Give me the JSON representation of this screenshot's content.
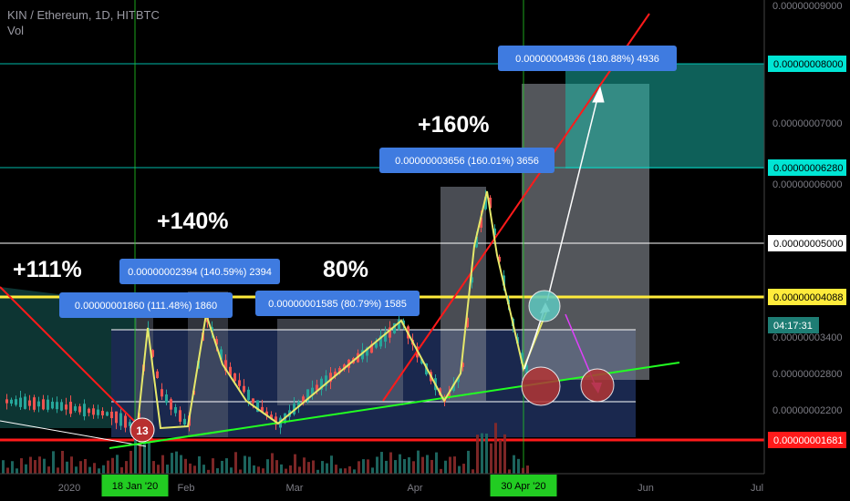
{
  "header": {
    "symbol_line": "KIN / Ethereum, 1D, HITBTC",
    "volume_label": "Vol"
  },
  "chart_data": {
    "type": "candlestick",
    "x_axis_labels": [
      "2020",
      "18 Jan '20",
      "Feb",
      "Mar",
      "Apr",
      "30 Apr '20",
      "Jun",
      "Jul"
    ],
    "y_axis_ticks": [
      "0.00000009000",
      "0.00000007000",
      "0.00000006000",
      "0.00000003400",
      "0.00000002800",
      "0.00000002200"
    ],
    "price_tags": [
      {
        "text": "0.00000008000",
        "color": "#00e5d4",
        "text_color": "#000000"
      },
      {
        "text": "0.00000006280",
        "color": "#00e5d4",
        "text_color": "#000000"
      },
      {
        "text": "0.00000005000",
        "color": "#ffffff",
        "text_color": "#000000"
      },
      {
        "text": "0.00000004088",
        "color": "#ffeb3b",
        "text_color": "#000000"
      },
      {
        "text": "04:17:31",
        "color": "#1e7d74",
        "text_color": "#ffffff"
      },
      {
        "text": "0.00000001681",
        "color": "#ff1a1a",
        "text_color": "#ffffff"
      }
    ],
    "measure_labels": [
      {
        "text": "0.00000001860 (111.48%) 1860"
      },
      {
        "text": "0.00000002394 (140.59%) 2394"
      },
      {
        "text": "0.00000001585 (80.79%) 1585"
      },
      {
        "text": "0.00000003656 (160.01%) 3656"
      },
      {
        "text": "0.00000004936 (180.88%) 4936"
      }
    ],
    "annotations": [
      "+111%",
      "+140%",
      "80%",
      "+160%"
    ],
    "event_marker": "13",
    "colors": {
      "up": "#26a69a",
      "down": "#ef5350",
      "support": "#ff1a1a",
      "resistance": "#ffeb3b",
      "trend": "#22ff22",
      "highlight": "#00e5d4",
      "zone": "#1b2a52"
    }
  }
}
